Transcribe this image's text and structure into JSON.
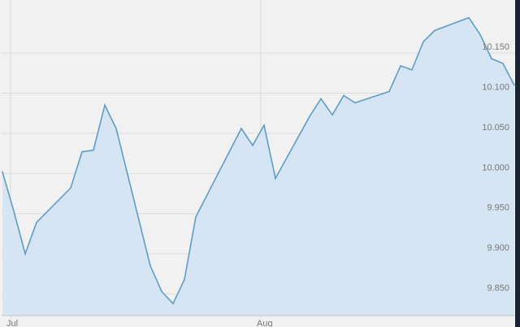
{
  "chart_data": {
    "type": "area",
    "title": "",
    "xlabel": "",
    "ylabel": "",
    "x_tick_labels": [
      "Jul",
      "Aug"
    ],
    "y_tick_labels": [
      "9.850",
      "9.900",
      "9.950",
      "10.000",
      "10.050",
      "10.100",
      "10.150"
    ],
    "y_ticks": [
      9.85,
      9.9,
      9.95,
      10.0,
      10.05,
      10.1,
      10.15
    ],
    "ylim": [
      9.823,
      10.216
    ],
    "grid": true,
    "x_axis": "trading days",
    "x": [
      "Jun 30",
      "Jul 1",
      "Jul 2",
      "Jul 3",
      "Jul 9",
      "Jul 10",
      "Jul 11",
      "Jul 14",
      "Jul 15",
      "Jul 18",
      "Jul 21",
      "Jul 22",
      "Jul 23",
      "Jul 24",
      "Jul 30",
      "Jul 31",
      "Aug 1",
      "Aug 4",
      "Aug 7",
      "Aug 8",
      "Aug 11",
      "Aug 12",
      "Aug 13",
      "Aug 18",
      "Aug 19",
      "Aug 20",
      "Aug 21",
      "Aug 22",
      "Aug 27",
      "Aug 28",
      "Aug 29",
      "Sep 2",
      "Sep 3"
    ],
    "values": [
      10.002,
      9.953,
      9.9,
      9.939,
      9.982,
      10.027,
      10.029,
      10.085,
      10.056,
      9.885,
      9.853,
      9.838,
      9.868,
      9.946,
      10.056,
      10.035,
      10.06,
      9.994,
      10.071,
      10.093,
      10.073,
      10.097,
      10.088,
      10.102,
      10.134,
      10.129,
      10.164,
      10.178,
      10.194,
      10.173,
      10.143,
      10.137,
      10.11
    ],
    "colors": {
      "line": "#5e9ec6",
      "fill": "#d6e5f3",
      "background": "#f1f1f1",
      "grid": "#dcdcdc",
      "frame": "#1a2330"
    }
  }
}
